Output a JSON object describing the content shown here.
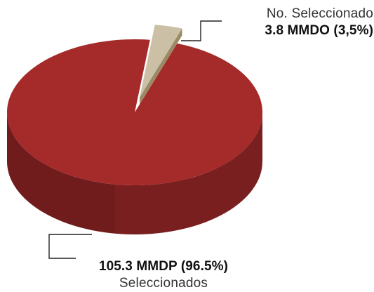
{
  "chart_data": {
    "type": "pie",
    "style": "3d",
    "slices": [
      {
        "name": "Seleccionados",
        "value_label": "105.3 MMDP (96.5%)",
        "value": 105.3,
        "percent": 96.5,
        "color": "#a52a2a",
        "side_color": "#7a1f1f"
      },
      {
        "name": "No. Seleccionado",
        "value_label": "3.8 MMDO (3,5%)",
        "value": 3.8,
        "percent": 3.5,
        "color": "#cbbfa5",
        "side_color": "#9a8a66",
        "exploded": true
      }
    ]
  }
}
